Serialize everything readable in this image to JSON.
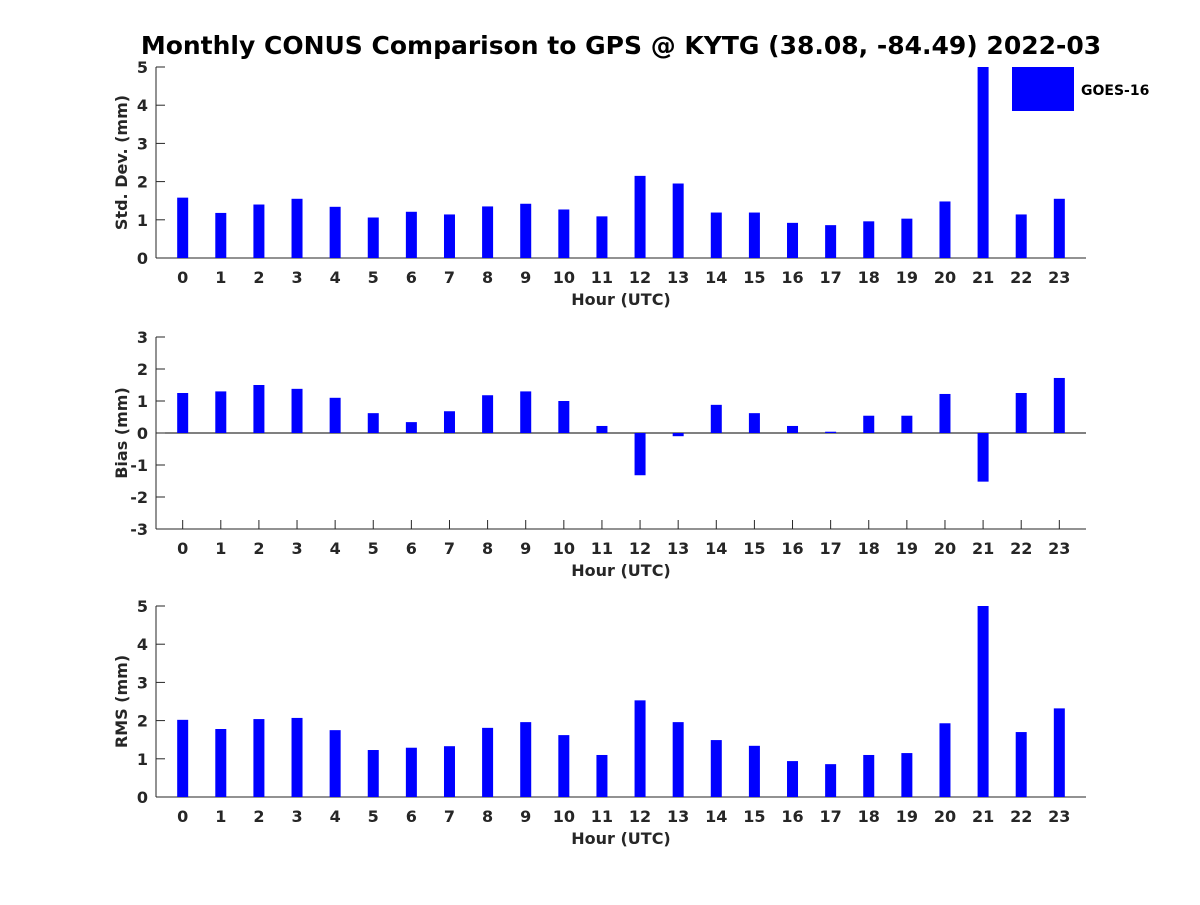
{
  "title": "Monthly CONUS Comparison to GPS @ KYTG (38.08, -84.49) 2022-03",
  "legend": {
    "label": "GOES-16",
    "color": "#0000ff"
  },
  "chart_data": [
    {
      "type": "bar",
      "xlabel": "Hour (UTC)",
      "ylabel": "Std. Dev. (mm)",
      "ylim": [
        0,
        5
      ],
      "yticks": [
        0,
        1,
        2,
        3,
        4,
        5
      ],
      "categories": [
        "0",
        "1",
        "2",
        "3",
        "4",
        "5",
        "6",
        "7",
        "8",
        "9",
        "10",
        "11",
        "12",
        "13",
        "14",
        "15",
        "16",
        "17",
        "18",
        "19",
        "20",
        "21",
        "22",
        "23"
      ],
      "series": [
        {
          "name": "GOES-16",
          "values": [
            1.58,
            1.18,
            1.4,
            1.55,
            1.34,
            1.06,
            1.21,
            1.14,
            1.35,
            1.42,
            1.27,
            1.09,
            2.15,
            1.95,
            1.19,
            1.19,
            0.92,
            0.86,
            0.96,
            1.03,
            1.48,
            5.0,
            1.14,
            1.55
          ]
        }
      ],
      "legend_position": "top-right"
    },
    {
      "type": "bar",
      "xlabel": "Hour (UTC)",
      "ylabel": "Bias (mm)",
      "ylim": [
        -3,
        3
      ],
      "yticks": [
        -3,
        -2,
        -1,
        0,
        1,
        2,
        3
      ],
      "categories": [
        "0",
        "1",
        "2",
        "3",
        "4",
        "5",
        "6",
        "7",
        "8",
        "9",
        "10",
        "11",
        "12",
        "13",
        "14",
        "15",
        "16",
        "17",
        "18",
        "19",
        "20",
        "21",
        "22",
        "23"
      ],
      "series": [
        {
          "name": "GOES-16",
          "values": [
            1.25,
            1.3,
            1.5,
            1.38,
            1.1,
            0.62,
            0.34,
            0.68,
            1.18,
            1.3,
            1.0,
            0.22,
            -1.32,
            -0.1,
            0.88,
            0.62,
            0.22,
            0.04,
            0.54,
            0.54,
            1.22,
            -1.52,
            1.25,
            1.72
          ]
        }
      ]
    },
    {
      "type": "bar",
      "xlabel": "Hour (UTC)",
      "ylabel": "RMS (mm)",
      "ylim": [
        0,
        5
      ],
      "yticks": [
        0,
        1,
        2,
        3,
        4,
        5
      ],
      "categories": [
        "0",
        "1",
        "2",
        "3",
        "4",
        "5",
        "6",
        "7",
        "8",
        "9",
        "10",
        "11",
        "12",
        "13",
        "14",
        "15",
        "16",
        "17",
        "18",
        "19",
        "20",
        "21",
        "22",
        "23"
      ],
      "series": [
        {
          "name": "GOES-16",
          "values": [
            2.02,
            1.78,
            2.04,
            2.07,
            1.75,
            1.23,
            1.29,
            1.33,
            1.81,
            1.96,
            1.62,
            1.1,
            2.53,
            1.96,
            1.49,
            1.34,
            0.94,
            0.86,
            1.1,
            1.15,
            1.93,
            5.0,
            1.7,
            2.32
          ]
        }
      ]
    }
  ]
}
